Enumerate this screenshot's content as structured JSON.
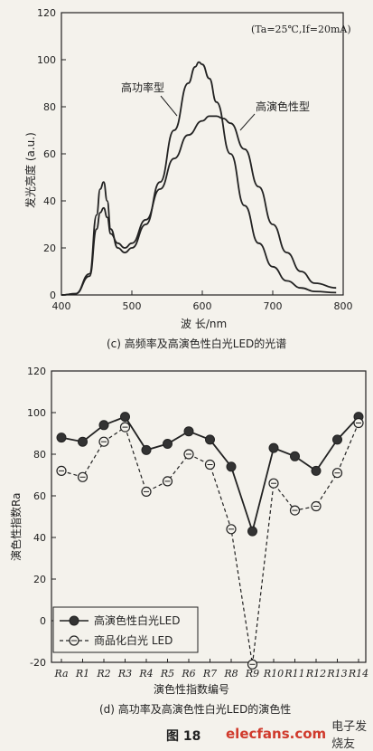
{
  "figure_label": "图  18",
  "watermark": {
    "site": "elecfans.com",
    "name": "电子发烧友"
  },
  "chart_data": [
    {
      "type": "line",
      "caption": "(c) 高频率及高演色性白光LED的光谱",
      "xlabel": "波  长/nm",
      "ylabel": "发光亮度 (a.u.)",
      "condition": "(Ta=25℃,If=20mA)",
      "xlim": [
        400,
        800
      ],
      "ylim": [
        0,
        120
      ],
      "xticks": [
        400,
        500,
        600,
        700,
        800
      ],
      "yticks": [
        0,
        20,
        40,
        60,
        80,
        100,
        120
      ],
      "series": [
        {
          "name": "高功率型",
          "x": [
            400,
            420,
            440,
            450,
            455,
            460,
            465,
            470,
            480,
            490,
            500,
            520,
            540,
            560,
            580,
            590,
            595,
            600,
            610,
            620,
            640,
            660,
            680,
            700,
            720,
            740,
            760,
            790
          ],
          "y": [
            0,
            0.5,
            9,
            34,
            45,
            48,
            40,
            28,
            20,
            18,
            20,
            30,
            48,
            70,
            90,
            97,
            99,
            98,
            92,
            82,
            60,
            38,
            22,
            12,
            6,
            3,
            1.5,
            1
          ]
        },
        {
          "name": "高演色性型",
          "x": [
            400,
            420,
            440,
            450,
            455,
            460,
            465,
            470,
            480,
            490,
            500,
            520,
            540,
            560,
            580,
            600,
            610,
            620,
            630,
            640,
            660,
            680,
            700,
            720,
            740,
            760,
            790
          ],
          "y": [
            0,
            0.5,
            8,
            28,
            35,
            37,
            33,
            26,
            22,
            20,
            22,
            32,
            45,
            58,
            68,
            74,
            76,
            76,
            75,
            73,
            62,
            46,
            30,
            18,
            10,
            5,
            3
          ]
        }
      ]
    },
    {
      "type": "line",
      "caption": "(d) 高功率及高演色性白光LED的演色性",
      "xlabel": "演色性指数编号",
      "ylabel": "演色性指数Ra",
      "ylim": [
        -20,
        120
      ],
      "yticks": [
        -20,
        0,
        20,
        40,
        60,
        80,
        100,
        120
      ],
      "categories": [
        "Ra",
        "R1",
        "R2",
        "R3",
        "R4",
        "R5",
        "R6",
        "R7",
        "R8",
        "R9",
        "R10",
        "R11",
        "R12",
        "R13",
        "R14"
      ],
      "series": [
        {
          "name": "高演色性白光LED",
          "marker": "filled-circle",
          "style": "solid",
          "values": [
            88,
            86,
            94,
            98,
            82,
            85,
            91,
            87,
            74,
            43,
            83,
            79,
            72,
            87,
            98
          ]
        },
        {
          "name": "商品化白光  LED",
          "marker": "open-circle-dash",
          "style": "dashed",
          "values": [
            72,
            69,
            86,
            93,
            62,
            67,
            80,
            75,
            44,
            -21,
            66,
            53,
            55,
            71,
            95
          ]
        }
      ]
    }
  ]
}
